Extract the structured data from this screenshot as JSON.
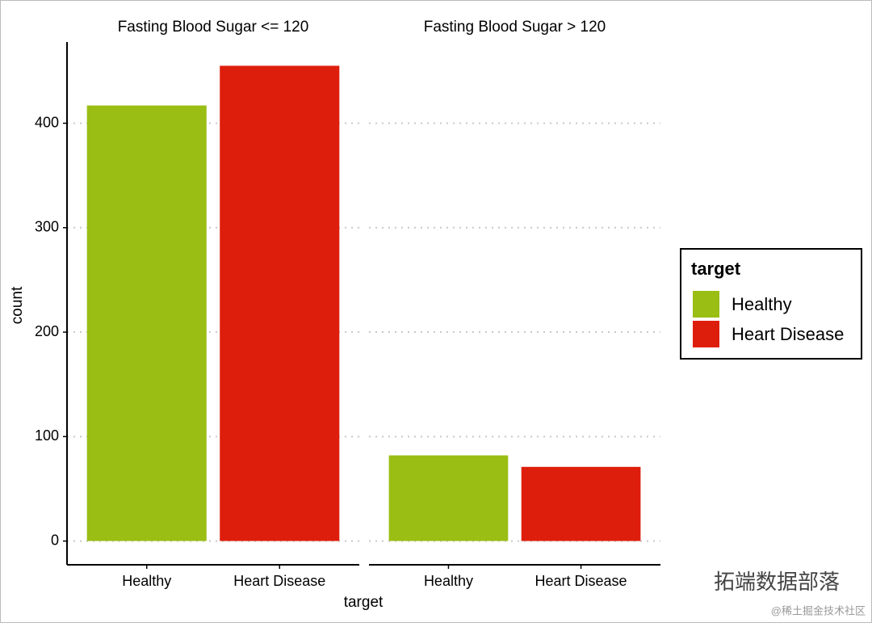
{
  "chart_data": [
    {
      "type": "bar",
      "title": "Fasting Blood Sugar <= 120",
      "categories": [
        "Healthy",
        "Heart Disease"
      ],
      "values": [
        417,
        455
      ],
      "colors": [
        "#9abe14",
        "#de1e0c"
      ],
      "ylim": [
        -22.75,
        477.75
      ],
      "yticks": [
        0,
        100,
        200,
        300,
        400
      ],
      "grid": true
    },
    {
      "type": "bar",
      "title": "Fasting Blood Sugar > 120",
      "categories": [
        "Healthy",
        "Heart Disease"
      ],
      "values": [
        82,
        71
      ],
      "colors": [
        "#9abe14",
        "#de1e0c"
      ],
      "ylim": [
        -22.75,
        477.75
      ],
      "yticks": [
        0,
        100,
        200,
        300,
        400
      ],
      "grid": true
    }
  ],
  "shared": {
    "xlabel": "target",
    "ylabel": "count",
    "legend_title": "target"
  },
  "watermark": {
    "brand": "拓端数据部落",
    "site": "@稀土掘金技术社区"
  }
}
